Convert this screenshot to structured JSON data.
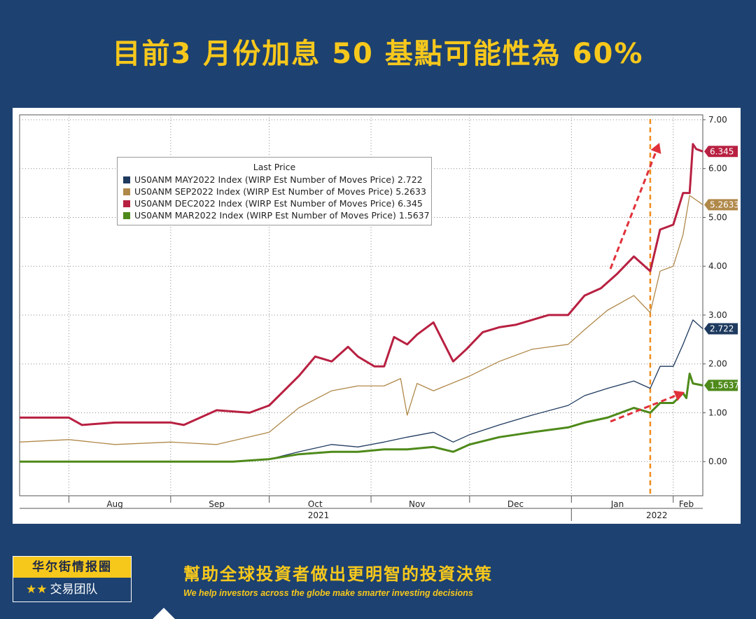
{
  "header": {
    "title": "目前3 月份加息 50 基點可能性為 60%"
  },
  "chart_data": {
    "type": "line",
    "title": "",
    "legend_title": "Last Price",
    "legend_position": "top-left",
    "grid": true,
    "x_range": [
      "2021-07-17",
      "2022-02-10"
    ],
    "ylim": [
      -0.7,
      7.1
    ],
    "yticks": [
      "7.00",
      "6.00",
      "5.00",
      "4.00",
      "3.00",
      "2.00",
      "1.00",
      "0.00"
    ],
    "ytick_values": [
      7,
      6,
      5,
      4,
      3,
      2,
      1,
      0
    ],
    "month_labels": [
      {
        "date": "2021-08-15",
        "label": "Aug"
      },
      {
        "date": "2021-09-15",
        "label": "Sep"
      },
      {
        "date": "2021-10-15",
        "label": "Oct"
      },
      {
        "date": "2021-11-15",
        "label": "Nov"
      },
      {
        "date": "2021-12-15",
        "label": "Dec"
      },
      {
        "date": "2022-01-15",
        "label": "Jan"
      },
      {
        "date": "2022-02-05",
        "label": "Feb"
      }
    ],
    "month_gridlines": [
      "2021-08-01",
      "2021-09-01",
      "2021-10-01",
      "2021-11-01",
      "2021-12-01",
      "2022-01-01",
      "2022-02-01"
    ],
    "year_labels": [
      {
        "date": "2021-10-16",
        "label": "2021"
      },
      {
        "date": "2022-01-27",
        "label": "2022"
      }
    ],
    "year_divider": "2022-01-01",
    "vertical_marker": {
      "date": "2022-01-25",
      "color": "#f08c1e"
    },
    "series": [
      {
        "name": "US0ANM MAY2022 Index (WIRP Est Number of Moves Price) 2.722",
        "last": "2.722",
        "color": "#1e3a5f",
        "width": 1.3,
        "x": [
          "2021-07-17",
          "2021-08-01",
          "2021-09-01",
          "2021-09-20",
          "2021-10-01",
          "2021-10-10",
          "2021-10-20",
          "2021-10-28",
          "2021-11-05",
          "2021-11-12",
          "2021-11-20",
          "2021-11-26",
          "2021-12-01",
          "2021-12-10",
          "2021-12-20",
          "2021-12-31",
          "2022-01-05",
          "2022-01-12",
          "2022-01-20",
          "2022-01-25",
          "2022-01-28",
          "2022-02-01",
          "2022-02-04",
          "2022-02-07",
          "2022-02-10"
        ],
        "y": [
          0.0,
          0.0,
          0.0,
          0.0,
          0.05,
          0.2,
          0.35,
          0.3,
          0.4,
          0.5,
          0.6,
          0.4,
          0.55,
          0.75,
          0.95,
          1.15,
          1.35,
          1.5,
          1.65,
          1.5,
          1.95,
          1.95,
          2.4,
          2.9,
          2.72
        ]
      },
      {
        "name": "US0ANM SEP2022 Index (WIRP Est Number of Moves Price) 5.2633",
        "last": "5.2633",
        "color": "#b0894a",
        "width": 1.3,
        "x": [
          "2021-07-17",
          "2021-08-01",
          "2021-08-15",
          "2021-09-01",
          "2021-09-15",
          "2021-10-01",
          "2021-10-10",
          "2021-10-20",
          "2021-10-28",
          "2021-11-05",
          "2021-11-10",
          "2021-11-12",
          "2021-11-15",
          "2021-11-20",
          "2021-12-01",
          "2021-12-10",
          "2021-12-20",
          "2021-12-31",
          "2022-01-05",
          "2022-01-12",
          "2022-01-20",
          "2022-01-25",
          "2022-01-28",
          "2022-02-01",
          "2022-02-04",
          "2022-02-06",
          "2022-02-10"
        ],
        "y": [
          0.4,
          0.45,
          0.35,
          0.4,
          0.35,
          0.6,
          1.1,
          1.45,
          1.55,
          1.55,
          1.7,
          0.95,
          1.6,
          1.45,
          1.75,
          2.05,
          2.3,
          2.4,
          2.7,
          3.1,
          3.4,
          3.05,
          3.9,
          4.0,
          4.65,
          5.45,
          5.26
        ]
      },
      {
        "name": "US0ANM DEC2022 Index (WIRP Est Number of Moves Price) 6.345",
        "last": "6.345",
        "color": "#b82041",
        "width": 3,
        "x": [
          "2021-07-17",
          "2021-08-01",
          "2021-08-05",
          "2021-08-15",
          "2021-09-01",
          "2021-09-05",
          "2021-09-15",
          "2021-09-25",
          "2021-10-01",
          "2021-10-10",
          "2021-10-15",
          "2021-10-20",
          "2021-10-25",
          "2021-10-28",
          "2021-11-02",
          "2021-11-05",
          "2021-11-08",
          "2021-11-12",
          "2021-11-15",
          "2021-11-20",
          "2021-11-26",
          "2021-11-30",
          "2021-12-05",
          "2021-12-10",
          "2021-12-15",
          "2021-12-20",
          "2021-12-25",
          "2021-12-31",
          "2022-01-05",
          "2022-01-10",
          "2022-01-15",
          "2022-01-20",
          "2022-01-25",
          "2022-01-28",
          "2022-02-01",
          "2022-02-04",
          "2022-02-06",
          "2022-02-07",
          "2022-02-08",
          "2022-02-10"
        ],
        "y": [
          0.9,
          0.9,
          0.75,
          0.8,
          0.8,
          0.75,
          1.05,
          1.0,
          1.15,
          1.75,
          2.15,
          2.05,
          2.35,
          2.15,
          1.95,
          1.95,
          2.55,
          2.4,
          2.6,
          2.85,
          2.05,
          2.3,
          2.65,
          2.75,
          2.8,
          2.9,
          3.0,
          3.0,
          3.4,
          3.55,
          3.85,
          4.2,
          3.9,
          4.75,
          4.85,
          5.5,
          5.5,
          6.5,
          6.4,
          6.35
        ]
      },
      {
        "name": "US0ANM MAR2022 Index (WIRP Est Number of Moves Price) 1.5637",
        "last": "1.5637",
        "color": "#4e8a1a",
        "width": 3,
        "x": [
          "2021-07-17",
          "2021-08-01",
          "2021-08-15",
          "2021-09-01",
          "2021-09-20",
          "2021-10-01",
          "2021-10-10",
          "2021-10-20",
          "2021-10-28",
          "2021-11-05",
          "2021-11-12",
          "2021-11-20",
          "2021-11-26",
          "2021-12-01",
          "2021-12-10",
          "2021-12-20",
          "2021-12-31",
          "2022-01-05",
          "2022-01-12",
          "2022-01-20",
          "2022-01-25",
          "2022-01-28",
          "2022-02-01",
          "2022-02-04",
          "2022-02-05",
          "2022-02-06",
          "2022-02-07",
          "2022-02-10"
        ],
        "y": [
          0.0,
          0.0,
          0.0,
          0.0,
          0.0,
          0.05,
          0.15,
          0.2,
          0.2,
          0.25,
          0.25,
          0.3,
          0.2,
          0.35,
          0.5,
          0.6,
          0.7,
          0.8,
          0.9,
          1.1,
          1.0,
          1.2,
          1.2,
          1.4,
          1.3,
          1.8,
          1.6,
          1.56
        ]
      }
    ]
  },
  "footer": {
    "logo_top": "华尔街情报圈",
    "logo_stars": "★★",
    "logo_bottom": "交易团队",
    "slogan_zh": "幫助全球投資者做出更明智的投資決策",
    "slogan_en": "We help investors across the globe make smarter investing decisions"
  }
}
